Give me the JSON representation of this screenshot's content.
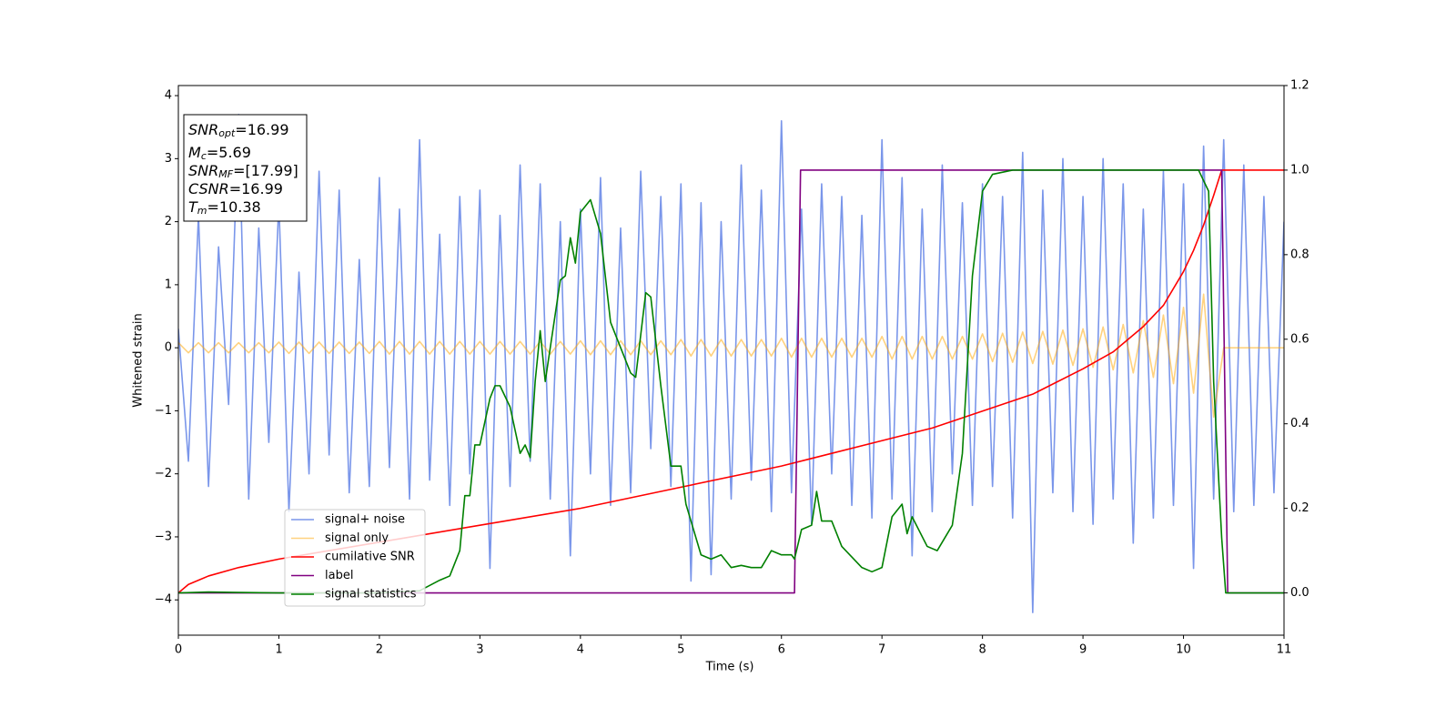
{
  "chart_data": {
    "type": "line",
    "x_label": "Time (s)",
    "y_label": "Whitened strain",
    "xlim": [
      0,
      11
    ],
    "xticks": [
      0,
      1,
      2,
      3,
      4,
      5,
      6,
      7,
      8,
      9,
      10,
      11
    ],
    "ylim": [
      -4.56,
      4.16
    ],
    "yticks": [
      {
        "value": -4,
        "label": "−4"
      },
      {
        "value": -3,
        "label": "−3"
      },
      {
        "value": -2,
        "label": "−2"
      },
      {
        "value": -1,
        "label": "−1"
      },
      0,
      1,
      2,
      3,
      4
    ],
    "y2lim": [
      -0.1,
      1.2
    ],
    "y2ticks": [
      {
        "value": 0,
        "label": "0.0"
      },
      0.2,
      0.4,
      0.6,
      0.8,
      {
        "value": 1,
        "label": "1.0"
      },
      1.2
    ],
    "annotations": [
      {
        "base": "SNR",
        "sub": "opt",
        "rest": "=16.99"
      },
      {
        "base": "M",
        "sub": "c",
        "rest": "=5.69"
      },
      {
        "base": "SNR",
        "sub": "MF",
        "rest": "=[17.99]"
      },
      {
        "base": "CSNR",
        "rest": "=16.99"
      },
      {
        "base": "T",
        "sub": "m",
        "rest": "=10.38"
      }
    ],
    "series": [
      {
        "name": "signal+ noise",
        "color": "#4169e1",
        "opacity": 0.7,
        "x": [
          0,
          0.1,
          0.2,
          0.3,
          0.4,
          0.5,
          0.6,
          0.7,
          0.8,
          0.9,
          1,
          1.1,
          1.2,
          1.3,
          1.4,
          1.5,
          1.6,
          1.7,
          1.8,
          1.9,
          2,
          2.1,
          2.2,
          2.3,
          2.4,
          2.5,
          2.6,
          2.7,
          2.8,
          2.9,
          3,
          3.1,
          3.2,
          3.3,
          3.4,
          3.5,
          3.6,
          3.7,
          3.8,
          3.9,
          4,
          4.1,
          4.2,
          4.3,
          4.4,
          4.5,
          4.6,
          4.7,
          4.8,
          4.9,
          5,
          5.1,
          5.2,
          5.3,
          5.4,
          5.5,
          5.6,
          5.7,
          5.8,
          5.9,
          6,
          6.1,
          6.2,
          6.3,
          6.4,
          6.5,
          6.6,
          6.7,
          6.8,
          6.9,
          7,
          7.1,
          7.2,
          7.3,
          7.4,
          7.5,
          7.6,
          7.7,
          7.8,
          7.9,
          8,
          8.1,
          8.2,
          8.3,
          8.4,
          8.5,
          8.6,
          8.7,
          8.8,
          8.9,
          9,
          9.1,
          9.2,
          9.3,
          9.4,
          9.5,
          9.6,
          9.7,
          9.8,
          9.9,
          10,
          10.1,
          10.2,
          10.3,
          10.4,
          10.5,
          10.6,
          10.7,
          10.8,
          10.9,
          11
        ],
        "values": [
          0.3,
          -1.8,
          2.1,
          -2.2,
          1.6,
          -0.9,
          3.7,
          -2.4,
          1.9,
          -1.5,
          2.3,
          -2.6,
          1.2,
          -2.0,
          2.8,
          -1.7,
          2.5,
          -2.3,
          1.4,
          -2.2,
          2.7,
          -1.9,
          2.2,
          -2.4,
          3.3,
          -2.1,
          1.8,
          -2.5,
          2.4,
          -2.0,
          2.5,
          -3.5,
          2.1,
          -2.2,
          2.9,
          -1.8,
          2.6,
          -2.4,
          2.0,
          -3.3,
          2.2,
          -2.0,
          2.7,
          -2.5,
          1.9,
          -2.3,
          2.8,
          -1.6,
          2.4,
          -2.2,
          2.6,
          -3.7,
          2.3,
          -3.6,
          2.0,
          -2.4,
          2.9,
          -2.1,
          2.5,
          -2.6,
          3.6,
          -2.3,
          2.2,
          -2.8,
          2.6,
          -2.0,
          2.4,
          -2.5,
          2.1,
          -2.7,
          3.3,
          -2.4,
          2.7,
          -3.3,
          2.2,
          -2.6,
          2.9,
          -2.0,
          2.3,
          -2.5,
          2.6,
          -2.2,
          2.4,
          -2.7,
          3.1,
          -4.2,
          2.5,
          -2.3,
          3.0,
          -2.6,
          2.4,
          -2.8,
          3.0,
          -2.4,
          2.6,
          -3.1,
          2.2,
          -2.7,
          2.8,
          -2.5,
          2.6,
          -3.5,
          3.2,
          -2.4,
          3.3,
          -2.6,
          2.9,
          -2.5,
          2.4,
          -2.3,
          2.0
        ]
      },
      {
        "name": "signal only",
        "color": "#ffa500",
        "opacity": 0.5,
        "x": [
          0,
          0.1,
          0.2,
          0.3,
          0.4,
          0.5,
          0.6,
          0.7,
          0.8,
          0.9,
          1,
          1.1,
          1.2,
          1.3,
          1.4,
          1.5,
          1.6,
          1.7,
          1.8,
          1.9,
          2,
          2.1,
          2.2,
          2.3,
          2.4,
          2.5,
          2.6,
          2.7,
          2.8,
          2.9,
          3,
          3.1,
          3.2,
          3.3,
          3.4,
          3.5,
          3.6,
          3.7,
          3.8,
          3.9,
          4,
          4.1,
          4.2,
          4.3,
          4.4,
          4.5,
          4.6,
          4.7,
          4.8,
          4.9,
          5,
          5.1,
          5.2,
          5.3,
          5.4,
          5.5,
          5.6,
          5.7,
          5.8,
          5.9,
          6,
          6.1,
          6.2,
          6.3,
          6.4,
          6.5,
          6.6,
          6.7,
          6.8,
          6.9,
          7,
          7.1,
          7.2,
          7.3,
          7.4,
          7.5,
          7.6,
          7.7,
          7.8,
          7.9,
          8,
          8.1,
          8.2,
          8.3,
          8.4,
          8.5,
          8.6,
          8.7,
          8.8,
          8.9,
          9,
          9.1,
          9.2,
          9.3,
          9.4,
          9.5,
          9.6,
          9.7,
          9.8,
          9.9,
          10,
          10.1,
          10.2,
          10.3,
          10.4,
          10.5,
          10.6,
          10.7,
          10.8,
          10.9,
          11
        ],
        "values": [
          0.08,
          -0.08,
          0.08,
          -0.08,
          0.08,
          -0.08,
          0.08,
          -0.08,
          0.08,
          -0.08,
          0.09,
          -0.09,
          0.09,
          -0.09,
          0.09,
          -0.09,
          0.09,
          -0.09,
          0.09,
          -0.09,
          0.1,
          -0.1,
          0.1,
          -0.1,
          0.1,
          -0.1,
          0.1,
          -0.1,
          0.1,
          -0.1,
          0.1,
          -0.1,
          0.1,
          -0.1,
          0.1,
          -0.1,
          0.1,
          -0.1,
          0.1,
          -0.1,
          0.11,
          -0.11,
          0.11,
          -0.11,
          0.11,
          -0.11,
          0.11,
          -0.11,
          0.11,
          -0.11,
          0.13,
          -0.13,
          0.13,
          -0.13,
          0.13,
          -0.13,
          0.13,
          -0.13,
          0.13,
          -0.13,
          0.15,
          -0.15,
          0.15,
          -0.15,
          0.15,
          -0.15,
          0.15,
          -0.15,
          0.15,
          -0.15,
          0.18,
          -0.18,
          0.18,
          -0.18,
          0.18,
          -0.18,
          0.18,
          -0.18,
          0.18,
          -0.18,
          0.22,
          -0.22,
          0.23,
          -0.23,
          0.25,
          -0.25,
          0.26,
          -0.26,
          0.28,
          -0.28,
          0.3,
          -0.31,
          0.33,
          -0.35,
          0.37,
          -0.4,
          0.43,
          -0.47,
          0.52,
          -0.57,
          0.64,
          -0.72,
          0.85,
          -1.1,
          0,
          0,
          0,
          0,
          0,
          0,
          0
        ]
      },
      {
        "name": "cumilative SNR",
        "color": "#ff0000",
        "axis": "y2",
        "x": [
          0,
          0.1,
          0.3,
          0.6,
          1,
          1.5,
          2,
          3,
          4,
          5,
          6,
          7,
          7.5,
          8,
          8.5,
          9,
          9.3,
          9.6,
          9.8,
          10,
          10.1,
          10.2,
          10.3,
          10.38,
          11
        ],
        "values": [
          0,
          0.02,
          0.04,
          0.06,
          0.08,
          0.1,
          0.12,
          0.16,
          0.2,
          0.25,
          0.3,
          0.36,
          0.39,
          0.43,
          0.47,
          0.53,
          0.57,
          0.63,
          0.68,
          0.76,
          0.81,
          0.87,
          0.94,
          1,
          1
        ]
      },
      {
        "name": "label",
        "color": "#800080",
        "axis": "y2",
        "x": [
          0,
          6.13,
          6.19,
          10.38,
          10.44,
          11
        ],
        "values": [
          0,
          0,
          1,
          1,
          0,
          0
        ]
      },
      {
        "name": "signal statistics",
        "color": "#008000",
        "axis": "y2",
        "x": [
          0,
          0.3,
          1,
          2,
          2.4,
          2.6,
          2.7,
          2.8,
          2.85,
          2.9,
          2.95,
          3.0,
          3.1,
          3.15,
          3.2,
          3.3,
          3.4,
          3.45,
          3.5,
          3.55,
          3.6,
          3.65,
          3.8,
          3.85,
          3.9,
          3.95,
          4.0,
          4.1,
          4.2,
          4.3,
          4.4,
          4.5,
          4.55,
          4.6,
          4.65,
          4.7,
          4.8,
          4.9,
          5.0,
          5.05,
          5.1,
          5.2,
          5.3,
          5.4,
          5.5,
          5.6,
          5.7,
          5.8,
          5.9,
          6.0,
          6.1,
          6.13,
          6.2,
          6.3,
          6.35,
          6.4,
          6.5,
          6.6,
          6.8,
          6.9,
          7.0,
          7.1,
          7.2,
          7.25,
          7.3,
          7.45,
          7.55,
          7.7,
          7.8,
          7.9,
          8.0,
          8.1,
          8.3,
          9.0,
          9.5,
          10.15,
          10.25,
          10.3,
          10.38,
          10.42,
          11
        ],
        "values": [
          0,
          0.002,
          0,
          0,
          0.005,
          0.03,
          0.04,
          0.1,
          0.23,
          0.23,
          0.35,
          0.35,
          0.46,
          0.49,
          0.49,
          0.44,
          0.33,
          0.35,
          0.32,
          0.5,
          0.62,
          0.5,
          0.74,
          0.75,
          0.84,
          0.78,
          0.9,
          0.93,
          0.85,
          0.64,
          0.58,
          0.52,
          0.51,
          0.61,
          0.71,
          0.7,
          0.49,
          0.3,
          0.3,
          0.21,
          0.17,
          0.09,
          0.08,
          0.09,
          0.06,
          0.065,
          0.06,
          0.06,
          0.1,
          0.09,
          0.09,
          0.08,
          0.15,
          0.16,
          0.24,
          0.17,
          0.17,
          0.11,
          0.06,
          0.05,
          0.06,
          0.18,
          0.21,
          0.14,
          0.18,
          0.11,
          0.1,
          0.16,
          0.33,
          0.75,
          0.95,
          0.99,
          1,
          1,
          1,
          1,
          0.95,
          0.5,
          0.13,
          0,
          0
        ]
      }
    ]
  }
}
